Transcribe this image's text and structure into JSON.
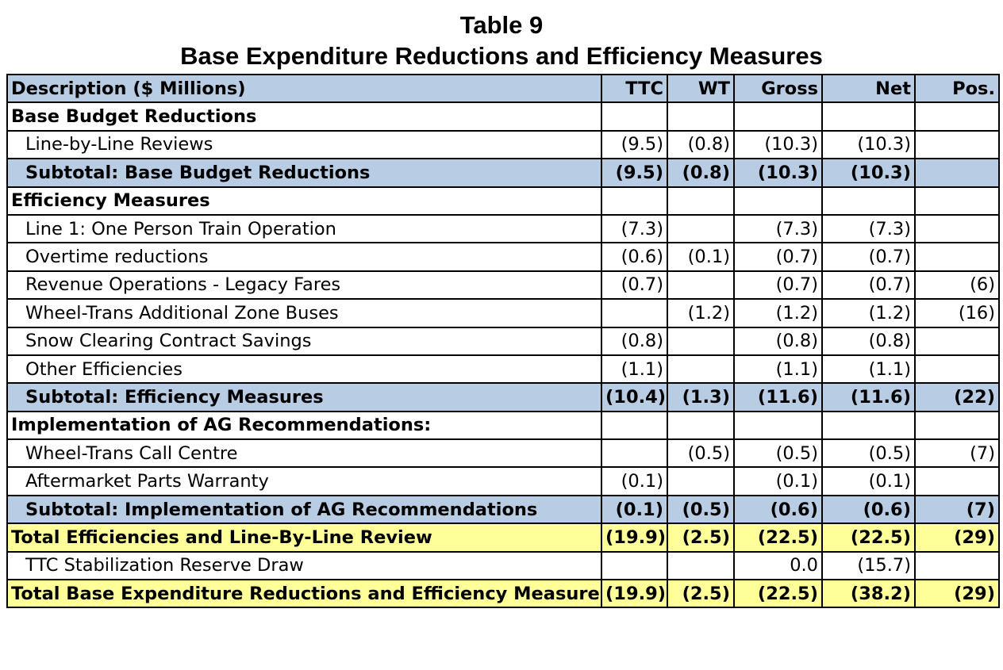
{
  "title": {
    "line1": "Table 9",
    "line2": "Base Expenditure Reductions and Efficiency Measures"
  },
  "columns": [
    "Description   ($ Millions)",
    "TTC",
    "WT",
    "Gross",
    "Net",
    "Pos."
  ],
  "rows": [
    {
      "type": "section",
      "cells": [
        "Base Budget Reductions",
        "",
        "",
        "",
        "",
        ""
      ]
    },
    {
      "type": "item",
      "cells": [
        "Line-by-Line Reviews",
        "(9.5)",
        "(0.8)",
        "(10.3)",
        "(10.3)",
        ""
      ]
    },
    {
      "type": "subtotal",
      "cells": [
        "Subtotal: Base Budget Reductions",
        "(9.5)",
        "(0.8)",
        "(10.3)",
        "(10.3)",
        ""
      ]
    },
    {
      "type": "section",
      "cells": [
        "Efficiency Measures",
        "",
        "",
        "",
        "",
        ""
      ]
    },
    {
      "type": "item",
      "cells": [
        "Line 1: One Person Train Operation",
        "(7.3)",
        "",
        "(7.3)",
        "(7.3)",
        ""
      ]
    },
    {
      "type": "item",
      "cells": [
        "Overtime reductions",
        "(0.6)",
        "(0.1)",
        "(0.7)",
        "(0.7)",
        ""
      ]
    },
    {
      "type": "item",
      "cells": [
        "Revenue Operations - Legacy Fares",
        "(0.7)",
        "",
        "(0.7)",
        "(0.7)",
        "(6)"
      ]
    },
    {
      "type": "item",
      "cells": [
        "Wheel-Trans Additional Zone Buses",
        "",
        "(1.2)",
        "(1.2)",
        "(1.2)",
        "(16)"
      ]
    },
    {
      "type": "item",
      "cells": [
        "Snow Clearing Contract Savings",
        "(0.8)",
        "",
        "(0.8)",
        "(0.8)",
        ""
      ]
    },
    {
      "type": "item",
      "cells": [
        "Other Efficiencies",
        "(1.1)",
        "",
        "(1.1)",
        "(1.1)",
        ""
      ]
    },
    {
      "type": "subtotal",
      "cells": [
        "Subtotal: Efficiency Measures",
        "(10.4)",
        "(1.3)",
        "(11.6)",
        "(11.6)",
        "(22)"
      ]
    },
    {
      "type": "section",
      "cells": [
        "Implementation of AG Recommendations:",
        "",
        "",
        "",
        "",
        ""
      ]
    },
    {
      "type": "item",
      "cells": [
        "Wheel-Trans Call Centre",
        "",
        "(0.5)",
        "(0.5)",
        "(0.5)",
        "(7)"
      ]
    },
    {
      "type": "item",
      "cells": [
        "Aftermarket Parts Warranty",
        "(0.1)",
        "",
        "(0.1)",
        "(0.1)",
        ""
      ]
    },
    {
      "type": "subtotal",
      "cells": [
        "Subtotal: Implementation of AG Recommendations",
        "(0.1)",
        "(0.5)",
        "(0.6)",
        "(0.6)",
        "(7)"
      ]
    },
    {
      "type": "total",
      "cells": [
        "Total Efficiencies and Line-By-Line Review",
        "(19.9)",
        "(2.5)",
        "(22.5)",
        "(22.5)",
        "(29)"
      ]
    },
    {
      "type": "item",
      "cells": [
        "TTC Stabilization Reserve Draw",
        "",
        "",
        "0.0",
        "(15.7)",
        ""
      ]
    },
    {
      "type": "total",
      "cells": [
        "Total Base Expenditure Reductions and Efficiency Measures",
        "(19.9)",
        "(2.5)",
        "(22.5)",
        "(38.2)",
        "(29)"
      ]
    }
  ],
  "colors": {
    "header_fill": "#b8cce4",
    "subtotal_fill": "#b8cce4",
    "total_fill": "#ffff99",
    "border": "#000000"
  }
}
